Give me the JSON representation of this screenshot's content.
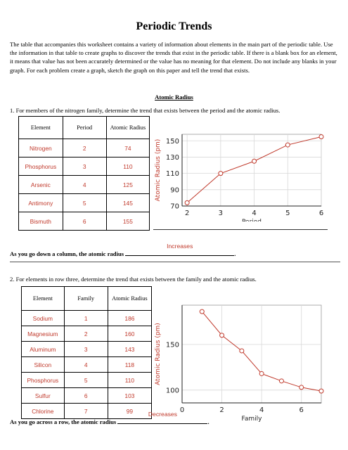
{
  "title": "Periodic Trends",
  "intro": "The table that accompanies this worksheet contains a variety of information about elements in the main part of the periodic table.  Use the information in that table to create graphs to discover the trends that exist in the periodic table.  If there is a blank box for an element, it means that value has not been accurately determined or the value has no meaning for that element.  Do not include any blanks in your graph.  For each problem create a graph, sketch the graph on this paper and tell the trend that exists.",
  "section_heading": "Atomic Radius",
  "q1": {
    "question": "1.  For members of the nitrogen family, determine the trend that exists between the period and the atomic radius.",
    "headers": [
      "Element",
      "Period",
      "Atomic Radius"
    ],
    "rows": [
      {
        "element": "Nitrogen",
        "group": "2",
        "radius": "74"
      },
      {
        "element": "Phosphorus",
        "group": "3",
        "radius": "110"
      },
      {
        "element": "Arsenic",
        "group": "4",
        "radius": "125"
      },
      {
        "element": "Antimony",
        "group": "5",
        "radius": "145"
      },
      {
        "element": "Bismuth",
        "group": "6",
        "radius": "155"
      }
    ],
    "answer_prefix": "As you go down a column, the atomic radius",
    "answer_suffix": ".",
    "answer": "Increases"
  },
  "q2": {
    "question": "2.  For elements in row three, determine the trend that exists between the family and the atomic radius.",
    "headers": [
      "Element",
      "Family",
      "Atomic Radius"
    ],
    "rows": [
      {
        "element": "Sodium",
        "group": "1",
        "radius": "186"
      },
      {
        "element": "Magnesium",
        "group": "2",
        "radius": "160"
      },
      {
        "element": "Aluminum",
        "group": "3",
        "radius": "143"
      },
      {
        "element": "Silicon",
        "group": "4",
        "radius": "118"
      },
      {
        "element": "Phosphorus",
        "group": "5",
        "radius": "110"
      },
      {
        "element": "Sulfur",
        "group": "6",
        "radius": "103"
      },
      {
        "element": "Chlorine",
        "group": "7",
        "radius": "99"
      }
    ],
    "answer_prefix": "As you go across a row, the atomic radius",
    "answer_suffix": ".",
    "answer": "Decreases"
  },
  "colors": {
    "accent": "#c0392b",
    "grid": "#d8d8d8",
    "axis": "#222222"
  },
  "chart_data": [
    {
      "type": "line",
      "xlabel": "Period",
      "ylabel": "Atomic Radius (pm)",
      "x": [
        2,
        3,
        4,
        5,
        6
      ],
      "y": [
        74,
        110,
        125,
        145,
        155
      ],
      "xlim": [
        1.85,
        6
      ],
      "ylim": [
        70,
        158
      ],
      "xticks": [
        2,
        3,
        4,
        5,
        6
      ],
      "yticks": [
        70,
        90,
        110,
        130,
        150
      ],
      "grid": true
    },
    {
      "type": "line",
      "xlabel": "Family",
      "ylabel": "Atomic Radius (pm)",
      "x": [
        1,
        2,
        3,
        4,
        5,
        6,
        7
      ],
      "y": [
        186,
        160,
        143,
        118,
        110,
        103,
        99
      ],
      "xlim": [
        0,
        7
      ],
      "ylim": [
        86,
        193
      ],
      "xticks": [
        0,
        2,
        4,
        6
      ],
      "yticks": [
        100,
        150
      ],
      "grid": true
    }
  ]
}
